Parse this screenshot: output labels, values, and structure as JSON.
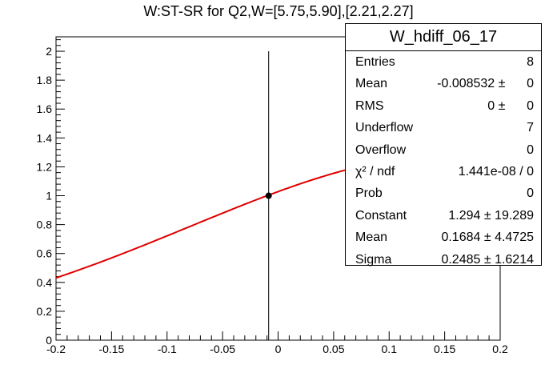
{
  "chart_data": {
    "type": "scatter",
    "title": "W:ST-SR for Q2,W=[5.75,5.90],[2.21,2.27]",
    "xlabel": "",
    "ylabel": "",
    "xlim": [
      -0.2,
      0.2
    ],
    "ylim": [
      0,
      2.1
    ],
    "x_ticks": [
      -0.2,
      -0.15,
      -0.1,
      -0.05,
      0,
      0.05,
      0.1,
      0.15,
      0.2
    ],
    "x_tick_labels": [
      "-0.2",
      "-0.15",
      "-0.1",
      "-0.05",
      "0",
      "0.05",
      "0.1",
      "0.15",
      "0.2"
    ],
    "y_ticks": [
      0,
      0.2,
      0.4,
      0.6,
      0.8,
      1,
      1.2,
      1.4,
      1.6,
      1.8,
      2
    ],
    "y_tick_labels": [
      "0",
      "0.2",
      "0.4",
      "0.6",
      "0.8",
      "1",
      "1.2",
      "1.4",
      "1.6",
      "1.8",
      "2"
    ],
    "points": [
      {
        "x": -0.0085,
        "y": 1.0,
        "y_err_low": 1.0,
        "y_err_high": 1.0
      }
    ],
    "fit": {
      "function": "gaus",
      "constant": 1.294,
      "mean": 0.1684,
      "sigma": 0.2485,
      "color": "#e00000"
    },
    "grid": false,
    "marker_color": "#000000"
  },
  "stats_box": {
    "title": "W_hdiff_06_17",
    "rows": [
      {
        "label": "Entries",
        "value": "8"
      },
      {
        "label": "Mean",
        "value": "-0.008532 ±      0"
      },
      {
        "label": "RMS",
        "value": "0 ±      0"
      },
      {
        "label": "Underflow",
        "value": "7"
      },
      {
        "label": "Overflow",
        "value": "0"
      },
      {
        "label": "χ² / ndf",
        "value": "1.441e-08 / 0"
      },
      {
        "label": "Prob",
        "value": "0"
      },
      {
        "label": "Constant",
        "value": "1.294 ± 19.289"
      },
      {
        "label": "Mean",
        "value": "0.1684 ± 4.4725"
      },
      {
        "label": "Sigma",
        "value": "0.2485 ± 1.6214"
      }
    ]
  }
}
